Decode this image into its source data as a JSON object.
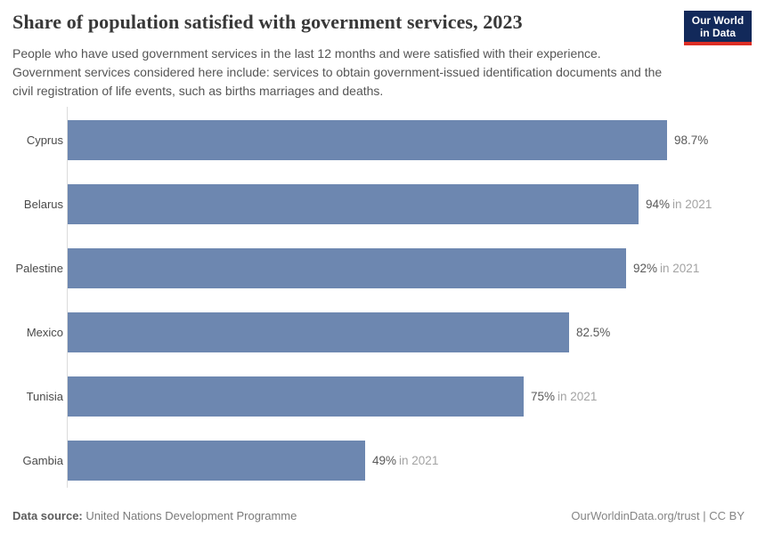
{
  "header": {
    "title": "Share of population satisfied with government services, 2023",
    "subtitle": "People who have used government services in the last 12 months and were satisfied with their experience. Government services considered here include: services to obtain government-issued identification documents and the civil registration of life events, such as births marriages and deaths."
  },
  "logo": {
    "line1": "Our World",
    "line2": "in Data",
    "bg_color": "#12295a",
    "accent_color": "#dc2e25"
  },
  "chart_data": {
    "type": "bar",
    "orientation": "horizontal",
    "title": "Share of population satisfied with government services, 2023",
    "categories": [
      "Cyprus",
      "Belarus",
      "Palestine",
      "Mexico",
      "Tunisia",
      "Gambia"
    ],
    "values": [
      98.7,
      94,
      92,
      82.5,
      75,
      49
    ],
    "value_labels": [
      "98.7%",
      "94%",
      "92%",
      "82.5%",
      "75%",
      "49%"
    ],
    "year_notes": [
      "",
      "in 2021",
      "in 2021",
      "",
      "in 2021",
      "in 2021"
    ],
    "xlim": [
      0,
      100
    ],
    "bar_color": "#6d87b0",
    "grid": false,
    "legend": "none"
  },
  "footer": {
    "source_label": "Data source:",
    "source_value": "United Nations Development Programme",
    "rights": "OurWorldinData.org/trust | CC BY"
  }
}
